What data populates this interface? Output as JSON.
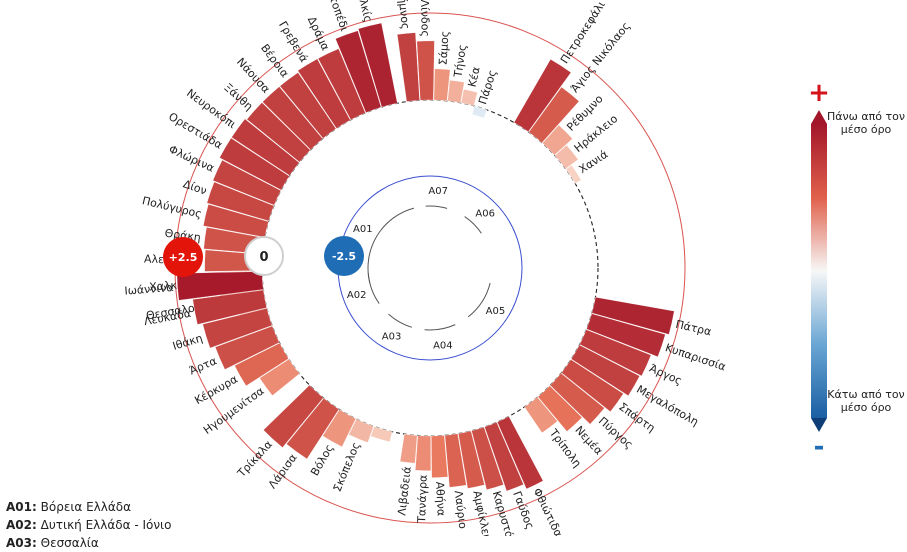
{
  "chart_data": {
    "type": "radial-bar",
    "title": "",
    "scale": {
      "min": -2.5,
      "mid": 0,
      "max": 2.5,
      "labels": [
        "+2.5",
        "0",
        "-2.5"
      ]
    },
    "colors": {
      "high": "#a3162a",
      "mid": "#f7f7f7",
      "low": "#1b5fa3",
      "badge_high": "#e3150b",
      "badge_low": "#1f6db5",
      "outer_ring": "#d9534f",
      "inner_ring": "#3a4fd0"
    },
    "legend": {
      "plus": "+",
      "minus": "-",
      "top_label": "Πάνω από τον μέσο όρο",
      "bottom_label": "Κάτω από τον μέσο όρο"
    },
    "regions": [
      {
        "code": "A01",
        "name": "Βόρεια Ελλάδα"
      },
      {
        "code": "A02",
        "name": "Δυτική Ελλάδα - Ιόνιο"
      },
      {
        "code": "A03",
        "name": "Θεσσαλία"
      },
      {
        "code": "A04",
        "name": ""
      },
      {
        "code": "A05",
        "name": ""
      },
      {
        "code": "A06",
        "name": ""
      },
      {
        "code": "A07",
        "name": ""
      }
    ],
    "groups": [
      {
        "code": "A01",
        "bars": [
          {
            "name": "Κιλκίς",
            "value": 2.35
          },
          {
            "name": "Βατοπέδι",
            "value": 2.3
          },
          {
            "name": "Δράμα",
            "value": 2.0
          },
          {
            "name": "Γρεβενά",
            "value": 2.0
          },
          {
            "name": "Βέροια",
            "value": 1.95
          },
          {
            "name": "Νάουσα",
            "value": 1.95
          },
          {
            "name": "Ξάνθη",
            "value": 1.95
          },
          {
            "name": "Νευροκόπι",
            "value": 2.0
          },
          {
            "name": "Ορεστιάδα",
            "value": 2.0
          },
          {
            "name": "Φλώρινα",
            "value": 1.9
          },
          {
            "name": "Δίον",
            "value": 1.85
          },
          {
            "name": "Πολύγυρος",
            "value": 1.8
          },
          {
            "name": "Θράκη",
            "value": 1.7
          },
          {
            "name": "Αλεξ/πολη",
            "value": 1.65
          },
          {
            "name": "Χαλκιδική",
            "value": 1.55
          },
          {
            "name": "Θεσσαλονίκη",
            "value": 1.25
          },
          {
            "name": "",
            "value": 0.8
          }
        ]
      },
      {
        "code": "A07",
        "bars": [
          {
            "name": "Λήμνος",
            "value": 1.95
          },
          {
            "name": "Λίνδος",
            "value": 1.7
          },
          {
            "name": "Σάμος",
            "value": 0.9
          },
          {
            "name": "Τήνος",
            "value": 0.6
          },
          {
            "name": "Κέα",
            "value": 0.4
          },
          {
            "name": "Πάρος",
            "value": -0.25
          }
        ]
      },
      {
        "code": "A06",
        "bars": [
          {
            "name": "Πετροκεφάλι",
            "value": 2.1
          },
          {
            "name": "Άγιος Νικόλαος",
            "value": 1.6
          },
          {
            "name": "Ρέθυμνο",
            "value": 0.7
          },
          {
            "name": "Ηράκλειο",
            "value": 0.45
          },
          {
            "name": "Χανιά",
            "value": 0.2
          }
        ]
      },
      {
        "code": "A05",
        "bars": [
          {
            "name": "Πάτρα",
            "value": 2.3
          },
          {
            "name": "Κυπαρισσία",
            "value": 2.2
          },
          {
            "name": "Άργος",
            "value": 2.0
          },
          {
            "name": "Μεγαλόπολη",
            "value": 1.95
          },
          {
            "name": "Σπάρτη",
            "value": 1.8
          },
          {
            "name": "Πύργος",
            "value": 1.6
          },
          {
            "name": "Νεμέα",
            "value": 1.3
          },
          {
            "name": "Τρίπολη",
            "value": 0.9
          }
        ]
      },
      {
        "code": "A04",
        "bars": [
          {
            "name": "Φθιώτιδα",
            "value": 2.1
          },
          {
            "name": "Γαύδος",
            "value": 1.95
          },
          {
            "name": "Καρυστός",
            "value": 1.75
          },
          {
            "name": "Αμφίκλεια",
            "value": 1.6
          },
          {
            "name": "Λαύριο",
            "value": 1.5
          },
          {
            "name": "Αθήνα",
            "value": 1.2
          },
          {
            "name": "Τανάγρα",
            "value": 1.0
          },
          {
            "name": "Λιβαδειά",
            "value": 0.8
          }
        ]
      },
      {
        "code": "A03",
        "bars": [
          {
            "name": "Τρίκαλα",
            "value": 1.85
          },
          {
            "name": "Λάρισα",
            "value": 1.7
          },
          {
            "name": "Βόλος",
            "value": 0.9
          },
          {
            "name": "Σκόπελος",
            "value": 0.5
          },
          {
            "name": "",
            "value": 0.3
          }
        ]
      },
      {
        "code": "A02",
        "bars": [
          {
            "name": "Ιωάννινα",
            "value": 2.45
          },
          {
            "name": "Λευκάδα",
            "value": 2.05
          },
          {
            "name": "Ιθάκη",
            "value": 1.9
          },
          {
            "name": "Άρτα",
            "value": 1.75
          },
          {
            "name": "Κέρκυρα",
            "value": 1.45
          },
          {
            "name": "Ηγουμενίτσα",
            "value": 1.0
          }
        ]
      }
    ]
  }
}
